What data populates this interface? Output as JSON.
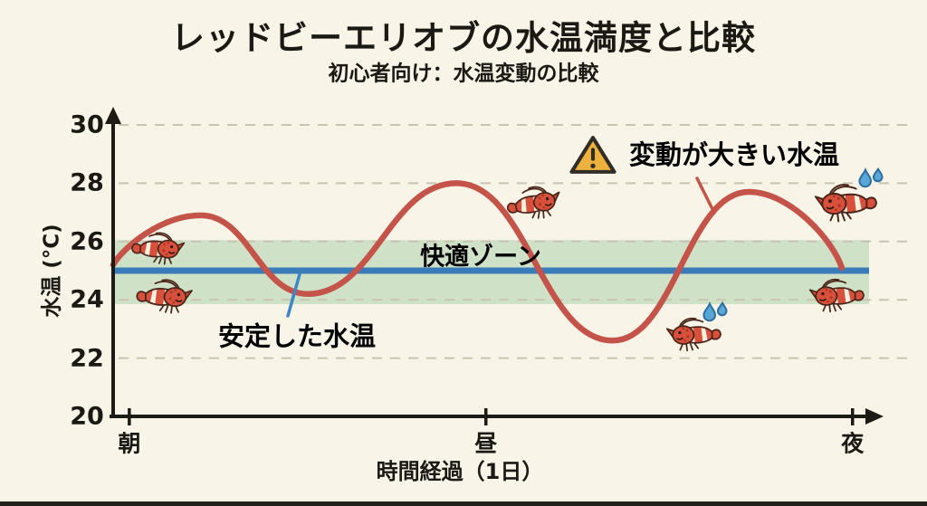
{
  "page": {
    "title": "レッドビーエリオブの水温満度と比較",
    "subtitle": "初心者向け：水温変動の比較",
    "background_color": "#f8f4e8",
    "bottom_bar_color": "#23221e",
    "axis_color": "#1d1b16"
  },
  "chart_data": {
    "type": "line",
    "title": "レッドビーエリオブの水温満度と比較",
    "subtitle": "初心者向け：水温変動の比較",
    "xlabel": "時間経過（1日）",
    "ylabel": "水温 (°C)",
    "ylim": [
      20,
      30
    ],
    "y_ticks": [
      30,
      28,
      26,
      24,
      22,
      20
    ],
    "x_ticks": [
      {
        "label": "朝",
        "t": 0.021
      },
      {
        "label": "昼",
        "t": 0.485
      },
      {
        "label": "夜",
        "t": 0.962
      }
    ],
    "grid": true,
    "grid_style": "dashed",
    "grid_color": "#c9c4b2",
    "legend_position": "annotations-on-chart",
    "comfort_zone": {
      "label": "快適ゾーン",
      "min": 23.85,
      "max": 26.05,
      "color": "#cfe2c8",
      "label_color": "#4d9b57"
    },
    "stable_line": {
      "label": "安定した水温",
      "value": 25,
      "color": "#3a7cb8",
      "label_color": "#3e86c6"
    },
    "fluctuating_line": {
      "label": "変動が大きい水温",
      "color": "#c4544a",
      "label_color": "#c04a3d",
      "points": [
        {
          "t": 0.0,
          "temp": 25.2
        },
        {
          "t": 0.114,
          "temp": 26.9
        },
        {
          "t": 0.253,
          "temp": 24.2
        },
        {
          "t": 0.447,
          "temp": 28.0
        },
        {
          "t": 0.65,
          "temp": 22.6
        },
        {
          "t": 0.827,
          "temp": 27.7
        },
        {
          "t": 0.948,
          "temp": 25.1
        }
      ]
    }
  },
  "annotations": {
    "warning": {
      "icon": "warning-triangle-icon",
      "icon_fill": "#edb23e",
      "icon_stroke": "#312d26",
      "text": "変動が大きい水温"
    },
    "stable": {
      "text": "安定した水温"
    },
    "comfort": {
      "text": "快適ゾーン"
    }
  },
  "decorations": {
    "sweat_drop_color": "#57a7d8",
    "shrimp_body_color": "#d6503c",
    "shrimp_outline_color": "#4a2418",
    "shrimp": [
      {
        "name": "shrimp-happy-upper-left",
        "mood": "happy",
        "facing": "right",
        "t": 0.059,
        "temp": 25.65,
        "size": 60,
        "rotate": 0
      },
      {
        "name": "shrimp-happy-lower-left",
        "mood": "happy",
        "facing": "right",
        "t": 0.067,
        "temp": 24.0,
        "size": 64,
        "rotate": 0
      },
      {
        "name": "shrimp-on-warm-peak",
        "mood": "happy",
        "facing": "right",
        "t": 0.549,
        "temp": 27.2,
        "size": 62,
        "rotate": -12
      },
      {
        "name": "shrimp-stressed-trough",
        "mood": "stressed",
        "facing": "left",
        "t": 0.755,
        "temp": 22.7,
        "size": 62,
        "rotate": 0
      },
      {
        "name": "shrimp-stressed-top-right",
        "mood": "stressed",
        "facing": "left",
        "t": 0.953,
        "temp": 27.2,
        "size": 70,
        "rotate": 0
      },
      {
        "name": "shrimp-happy-lower-right",
        "mood": "happy",
        "facing": "left",
        "t": 0.941,
        "temp": 24.05,
        "size": 62,
        "rotate": 0
      }
    ]
  }
}
